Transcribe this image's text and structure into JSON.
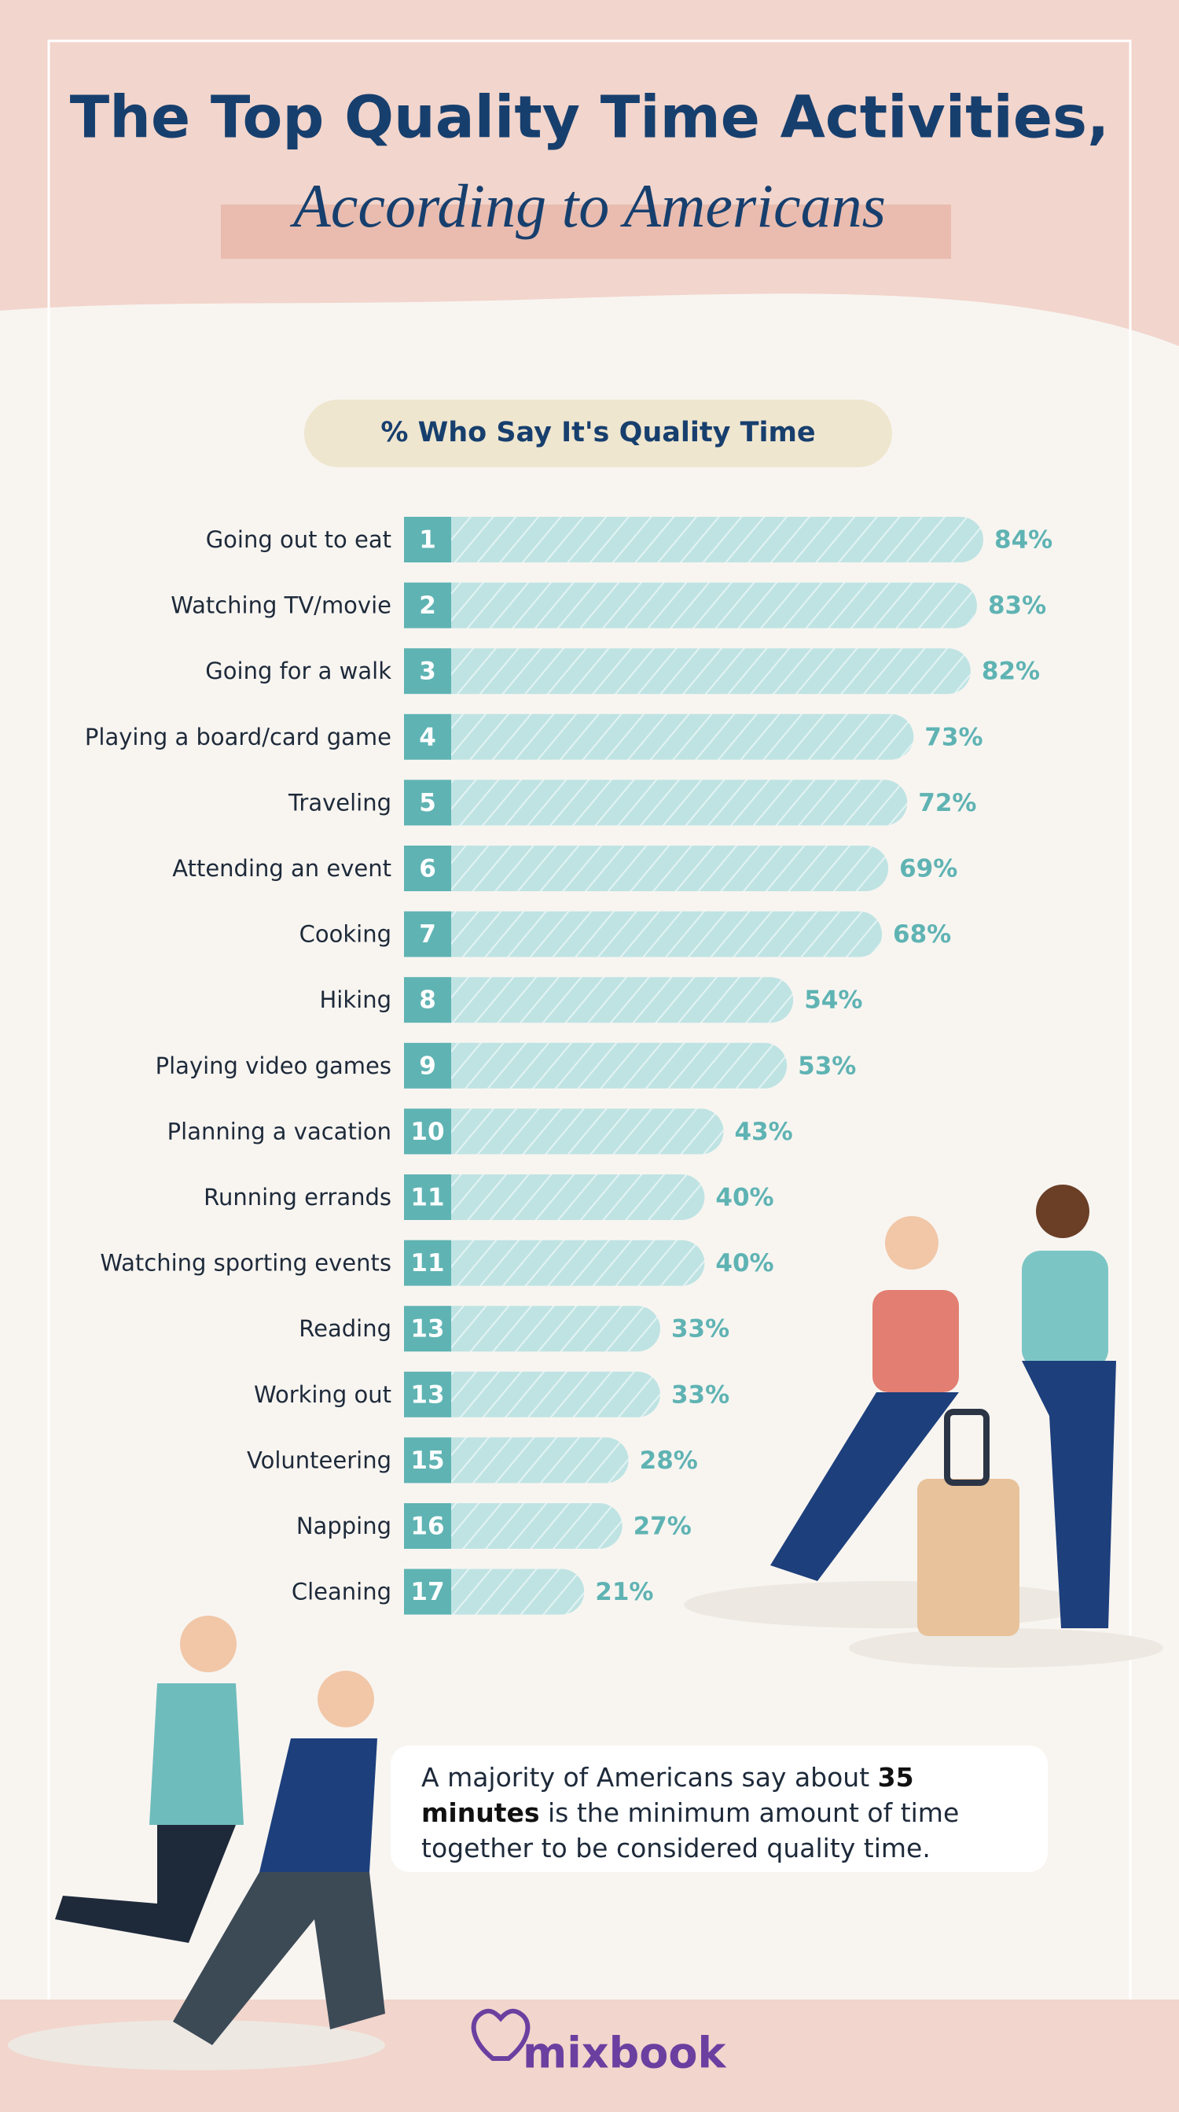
{
  "chart_data": {
    "type": "bar",
    "title": "The Top Quality Time Activities,",
    "subtitle": "According to Americans",
    "value_axis_label": "% Who Say It's Quality Time",
    "categories": [
      "Going out to eat",
      "Watching TV/movie",
      "Going for a walk",
      "Playing a board/card game",
      "Traveling",
      "Attending an event",
      "Cooking",
      "Hiking",
      "Playing video games",
      "Planning a vacation",
      "Running errands",
      "Watching sporting events",
      "Reading",
      "Working out",
      "Volunteering",
      "Napping",
      "Cleaning"
    ],
    "ranks": [
      1,
      2,
      3,
      4,
      5,
      6,
      7,
      8,
      9,
      10,
      11,
      11,
      13,
      13,
      15,
      16,
      17
    ],
    "values": [
      84,
      83,
      82,
      73,
      72,
      69,
      68,
      54,
      53,
      43,
      40,
      40,
      33,
      33,
      28,
      27,
      21
    ],
    "value_labels": [
      "84%",
      "83%",
      "82%",
      "73%",
      "72%",
      "69%",
      "68%",
      "54%",
      "53%",
      "43%",
      "40%",
      "40%",
      "33%",
      "33%",
      "28%",
      "27%",
      "21%"
    ],
    "color": "#bfe3e3",
    "rank_color": "#5fb3b3",
    "annotation": [
      "A majority of Americans say about",
      "35 minutes",
      "is the minimum amount of time together to be considered quality time."
    ],
    "brand": "mixbook"
  }
}
